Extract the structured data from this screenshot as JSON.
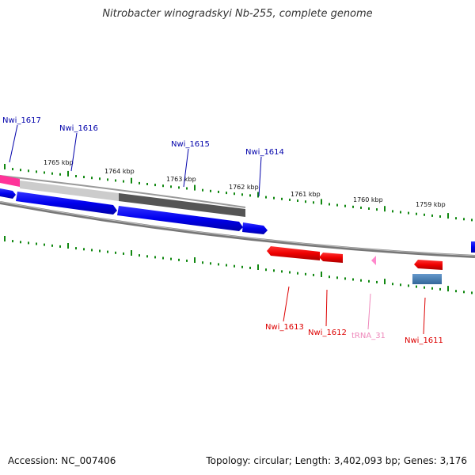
{
  "title": "Nitrobacter winogradskyi Nb-255, complete genome",
  "footer": {
    "accession": "Accession: NC_007406",
    "summary": "Topology: circular; Length: 3,402,093 bp; Genes: 3,176"
  },
  "kbp_labels": [
    "1765 kbp",
    "1764 kbp",
    "1763 kbp",
    "1762 kbp",
    "1761 kbp",
    "1760 kbp",
    "1759 kbp"
  ],
  "genes_top": [
    {
      "label": "Nwi_1617",
      "color": "#0000aa"
    },
    {
      "label": "Nwi_1616",
      "color": "#0000aa"
    },
    {
      "label": "Nwi_1615",
      "color": "#0000aa"
    },
    {
      "label": "Nwi_1614",
      "color": "#0000aa"
    }
  ],
  "genes_bottom": [
    {
      "label": "Nwi_1613",
      "color": "#dd0000"
    },
    {
      "label": "Nwi_1612",
      "color": "#dd0000"
    },
    {
      "label": "tRNA_31",
      "color": "#ee88bb"
    },
    {
      "label": "Nwi_1611",
      "color": "#dd0000"
    }
  ],
  "colors": {
    "forward_gene": "#0000ee",
    "reverse_gene": "#ee0000",
    "trna": "#ff88cc",
    "tick": "#118811",
    "backbone": "#777777",
    "accent_pink": "#ff3399",
    "accent_blue_gray": "#4477aa"
  }
}
